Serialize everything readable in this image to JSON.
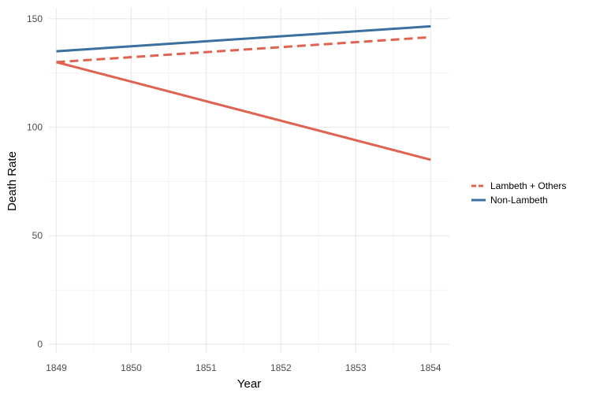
{
  "chart_data": {
    "type": "line",
    "xlabel": "Year",
    "ylabel": "Death Rate",
    "x": [
      1849,
      1850,
      1851,
      1852,
      1853,
      1854
    ],
    "xlim": [
      1848.9,
      1854.25
    ],
    "ylim": [
      -4,
      155
    ],
    "yticks": [
      0,
      50,
      100,
      150
    ],
    "grid": true,
    "legend": "right",
    "series": [
      {
        "name": "Non-Lambeth",
        "x": [
          1849,
          1854
        ],
        "values": [
          135,
          146.5
        ],
        "color": "#3B6FA0",
        "dash": "solid"
      },
      {
        "name": "",
        "legend_group": "Lambeth + Others",
        "x": [
          1849,
          1854
        ],
        "values": [
          130,
          85
        ],
        "color": "#E06352",
        "dash": "solid"
      },
      {
        "name": "Lambeth + Others",
        "x": [
          1849,
          1854
        ],
        "values": [
          130,
          141.5
        ],
        "color": "#E06352",
        "dash": "dashed"
      }
    ],
    "legend_entries": [
      {
        "label": "Lambeth + Others",
        "color": "#E06352",
        "dash": "dashed"
      },
      {
        "label": "Non-Lambeth",
        "color": "#3B6FA0",
        "dash": "solid"
      }
    ]
  }
}
